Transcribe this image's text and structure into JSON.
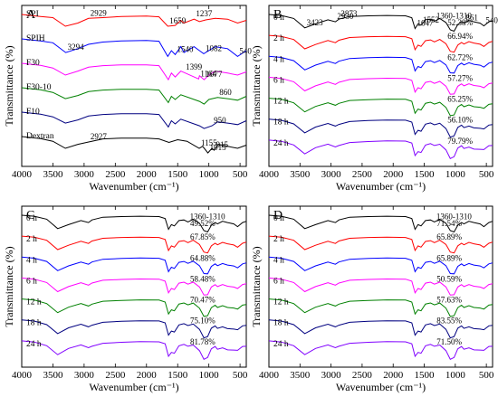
{
  "chart_data": [
    {
      "panel": "A",
      "type": "line",
      "xlabel": "Wavenumber (cm⁻¹)",
      "ylabel": "Transmittance (%)",
      "xlim": [
        4000,
        400
      ],
      "xticks": [
        4000,
        3500,
        3000,
        2500,
        2000,
        1500,
        1000,
        500
      ],
      "series": [
        {
          "name": "SPI",
          "color": "#ff0000",
          "offset": 0.02,
          "x": [
            4000,
            3700,
            3500,
            3300,
            3100,
            2929,
            2700,
            2400,
            2000,
            1800,
            1659,
            1540,
            1450,
            1400,
            1237,
            1150,
            1050,
            900,
            700,
            540,
            400
          ],
          "y": [
            0,
            0.05,
            0.08,
            0.3,
            0.22,
            0.1,
            0.08,
            0.05,
            0.04,
            0.06,
            0.3,
            0.28,
            0.15,
            0.22,
            0.12,
            0.18,
            0.14,
            0.1,
            0.12,
            0.22,
            0.15
          ]
        },
        {
          "name": "SPIH",
          "color": "#0000ff",
          "offset": 0.18,
          "x": [
            4000,
            3700,
            3500,
            3294,
            3100,
            2929,
            2700,
            2400,
            2000,
            1800,
            1659,
            1600,
            1540,
            1450,
            1399,
            1237,
            1150,
            1082,
            900,
            700,
            540,
            400
          ],
          "y": [
            0,
            0.05,
            0.1,
            0.35,
            0.25,
            0.14,
            0.08,
            0.05,
            0.04,
            0.06,
            0.45,
            0.3,
            0.4,
            0.2,
            0.35,
            0.2,
            0.3,
            0.38,
            0.2,
            0.25,
            0.45,
            0.3
          ]
        },
        {
          "name": "F30",
          "color": "#ff00ff",
          "offset": 0.35,
          "x": [
            4000,
            3700,
            3500,
            3300,
            3100,
            2929,
            2700,
            2400,
            2000,
            1800,
            1650,
            1600,
            1540,
            1450,
            1164,
            1150,
            1077,
            1000,
            900,
            700,
            540,
            400
          ],
          "y": [
            0,
            0.05,
            0.12,
            0.3,
            0.2,
            0.1,
            0.06,
            0.04,
            0.04,
            0.06,
            0.42,
            0.25,
            0.35,
            0.2,
            0.4,
            0.32,
            0.42,
            0.3,
            0.2,
            0.25,
            0.3,
            0.22
          ]
        },
        {
          "name": "F30-10",
          "color": "#008000",
          "offset": 0.5,
          "x": [
            4000,
            3700,
            3500,
            3300,
            3100,
            2929,
            2700,
            2400,
            2000,
            1800,
            1650,
            1600,
            1540,
            1450,
            1150,
            1077,
            1000,
            860,
            700,
            540,
            400
          ],
          "y": [
            0,
            0.05,
            0.12,
            0.28,
            0.2,
            0.1,
            0.06,
            0.04,
            0.04,
            0.06,
            0.38,
            0.22,
            0.3,
            0.18,
            0.35,
            0.42,
            0.3,
            0.25,
            0.28,
            0.32,
            0.22
          ]
        },
        {
          "name": "F10",
          "color": "#000080",
          "offset": 0.65,
          "x": [
            4000,
            3700,
            3500,
            3300,
            3100,
            2929,
            2700,
            2400,
            2000,
            1800,
            1650,
            1600,
            1540,
            1450,
            1150,
            1077,
            950,
            860,
            700,
            540,
            400
          ],
          "y": [
            0,
            0.05,
            0.12,
            0.28,
            0.2,
            0.1,
            0.06,
            0.04,
            0.04,
            0.06,
            0.38,
            0.22,
            0.3,
            0.18,
            0.35,
            0.42,
            0.35,
            0.25,
            0.28,
            0.32,
            0.22
          ]
        },
        {
          "name": "Dextran",
          "color": "#000000",
          "offset": 0.8,
          "x": [
            4000,
            3700,
            3500,
            3300,
            3100,
            2927,
            2700,
            2400,
            2000,
            1800,
            1640,
            1500,
            1350,
            1155,
            1100,
            1015,
            950,
            915,
            850,
            700,
            540,
            400
          ],
          "y": [
            0,
            0.05,
            0.12,
            0.3,
            0.2,
            0.14,
            0.06,
            0.04,
            0.04,
            0.06,
            0.15,
            0.08,
            0.12,
            0.3,
            0.25,
            0.42,
            0.3,
            0.35,
            0.2,
            0.25,
            0.3,
            0.22
          ]
        }
      ],
      "annotations": [
        {
          "text": "3294",
          "x": 3294,
          "series": 1
        },
        {
          "text": "2929",
          "x": 2929,
          "series": 0
        },
        {
          "text": "1659",
          "x": 1659,
          "series": 0
        },
        {
          "text": "1237",
          "x": 1237,
          "series": 0
        },
        {
          "text": "1540",
          "x": 1540,
          "series": 1
        },
        {
          "text": "1399",
          "x": 1399,
          "series": 2
        },
        {
          "text": "1082",
          "x": 1082,
          "series": 1
        },
        {
          "text": "540",
          "x": 540,
          "series": 1
        },
        {
          "text": "1164",
          "x": 1164,
          "series": 2
        },
        {
          "text": "1077",
          "x": 1077,
          "series": 2
        },
        {
          "text": "860",
          "x": 860,
          "series": 3
        },
        {
          "text": "950",
          "x": 950,
          "series": 4
        },
        {
          "text": "2927",
          "x": 2927,
          "series": 5
        },
        {
          "text": "1155",
          "x": 1155,
          "series": 5
        },
        {
          "text": "915",
          "x": 915,
          "series": 5
        },
        {
          "text": "1015",
          "x": 1015,
          "series": 5
        }
      ]
    },
    {
      "panel": "B",
      "type": "line",
      "xlabel": "Wavenumber (cm⁻¹)",
      "ylabel": "Transmittance (%)",
      "xlim": [
        4000,
        400
      ],
      "xticks": [
        4000,
        3500,
        3000,
        2500,
        2000,
        1500,
        1000,
        500
      ],
      "series": [
        {
          "name": "0 h",
          "color": "#000000",
          "offset": 0.0,
          "percent": "52.38%"
        },
        {
          "name": "2 h",
          "color": "#ff0000",
          "offset": 0.14,
          "percent": "66.94%"
        },
        {
          "name": "4 h",
          "color": "#0000ff",
          "offset": 0.28,
          "percent": "62.72%"
        },
        {
          "name": "6 h",
          "color": "#ff00ff",
          "offset": 0.42,
          "percent": "57.27%"
        },
        {
          "name": "12 h",
          "color": "#008000",
          "offset": 0.56,
          "percent": "65.25%"
        },
        {
          "name": "18 h",
          "color": "#000080",
          "offset": 0.7,
          "percent": "56.10%"
        },
        {
          "name": "24 h",
          "color": "#8000ff",
          "offset": 0.84,
          "percent": "79.79%"
        }
      ],
      "annotations": [
        {
          "text": "1552",
          "x": 1552
        },
        {
          "text": "1360-1310",
          "x": 1335
        },
        {
          "text": "2930",
          "x": 2930
        },
        {
          "text": "1647",
          "x": 1647
        },
        {
          "text": "861",
          "x": 861
        },
        {
          "text": "3423",
          "x": 3423
        },
        {
          "text": "2873",
          "x": 2873
        },
        {
          "text": "540",
          "x": 540
        }
      ]
    },
    {
      "panel": "C",
      "type": "line",
      "xlabel": "Wavenumber (cm⁻¹)",
      "ylabel": "Transmittance (%)",
      "xlim": [
        4000,
        400
      ],
      "xticks": [
        4000,
        3500,
        3000,
        2500,
        2000,
        1500,
        1000,
        500
      ],
      "series": [
        {
          "name": "0 h",
          "color": "#000000",
          "offset": 0.0,
          "percent": "49.52%"
        },
        {
          "name": "2 h",
          "color": "#ff0000",
          "offset": 0.14,
          "percent": "67.85%"
        },
        {
          "name": "4 h",
          "color": "#0000ff",
          "offset": 0.28,
          "percent": "64.88%"
        },
        {
          "name": "6 h",
          "color": "#ff00ff",
          "offset": 0.42,
          "percent": "58.48%"
        },
        {
          "name": "12 h",
          "color": "#008000",
          "offset": 0.56,
          "percent": "70.47%"
        },
        {
          "name": "18 h",
          "color": "#000080",
          "offset": 0.7,
          "percent": "75.10%"
        },
        {
          "name": "24 h",
          "color": "#8000ff",
          "offset": 0.84,
          "percent": "81.78%"
        }
      ],
      "annotations": [
        {
          "text": "1360-1310",
          "x": 1335
        }
      ]
    },
    {
      "panel": "D",
      "type": "line",
      "xlabel": "Wavenumber (cm⁻¹)",
      "ylabel": "Transmittance (%)",
      "xlim": [
        4000,
        400
      ],
      "xticks": [
        4000,
        3500,
        3000,
        2500,
        2000,
        1500,
        1000,
        500
      ],
      "series": [
        {
          "name": "0 h",
          "color": "#000000",
          "offset": 0.0,
          "percent": "71.54%"
        },
        {
          "name": "2 h",
          "color": "#ff0000",
          "offset": 0.14,
          "percent": "65.89%"
        },
        {
          "name": "4 h",
          "color": "#0000ff",
          "offset": 0.28,
          "percent": "65.89%"
        },
        {
          "name": "6 h",
          "color": "#ff00ff",
          "offset": 0.42,
          "percent": "50.59%"
        },
        {
          "name": "12 h",
          "color": "#008000",
          "offset": 0.56,
          "percent": "57.63%"
        },
        {
          "name": "18 h",
          "color": "#000080",
          "offset": 0.7,
          "percent": "83.55%"
        },
        {
          "name": "24 h",
          "color": "#8000ff",
          "offset": 0.84,
          "percent": "71.50%"
        }
      ],
      "annotations": [
        {
          "text": "1360-1310",
          "x": 1335
        }
      ]
    }
  ]
}
